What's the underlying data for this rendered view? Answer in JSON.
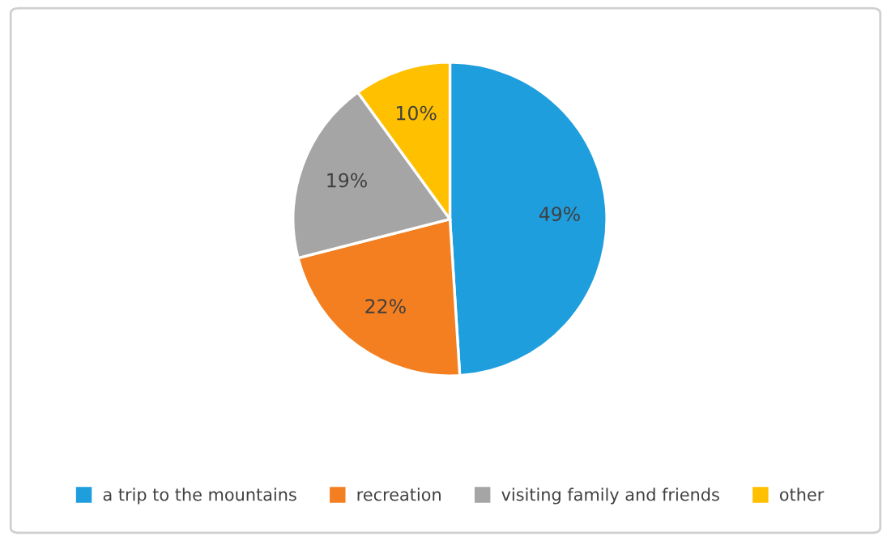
{
  "chart_data": {
    "type": "pie",
    "categories": [
      "a trip to the mountains",
      "recreation",
      "visiting family and friends",
      "other"
    ],
    "values": [
      49,
      22,
      19,
      10
    ],
    "value_labels": [
      "49%",
      "22%",
      "19%",
      "10%"
    ],
    "colors": [
      "#1f9ede",
      "#f47f20",
      "#a5a5a5",
      "#ffc000"
    ],
    "legend": "bottom"
  }
}
